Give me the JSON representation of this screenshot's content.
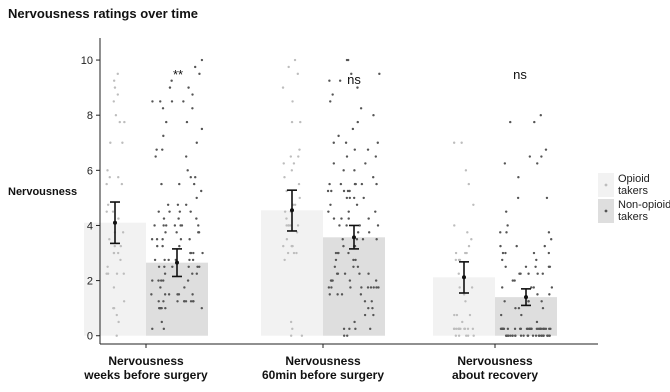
{
  "chart_data": {
    "type": "bar",
    "title": "Nervousness ratings over time",
    "ylabel": "Nervousness",
    "xlabel": "",
    "ylim": [
      -0.3,
      10.8
    ],
    "yticks": [
      0,
      2,
      4,
      6,
      8,
      10
    ],
    "categories": [
      [
        "Nervousness",
        "weeks before surgery"
      ],
      [
        "Nervousness",
        "60min before surgery"
      ],
      [
        "Nervousness",
        "about recovery"
      ]
    ],
    "series": [
      {
        "name": "Opioid takers",
        "values": [
          4.1,
          4.55,
          2.12
        ],
        "error_low": [
          3.35,
          3.8,
          1.55
        ],
        "error_high": [
          4.85,
          5.28,
          2.68
        ],
        "color": "#f2f2f2",
        "point_color": "#bdbdbd"
      },
      {
        "name": "Non-opioid takers",
        "values": [
          2.65,
          3.57,
          1.4
        ],
        "error_low": [
          2.15,
          3.15,
          1.1
        ],
        "error_high": [
          3.15,
          4.0,
          1.7
        ],
        "color": "#dedede",
        "point_color": "#555555"
      }
    ],
    "significance": [
      "**",
      "ns",
      "ns"
    ],
    "legend": {
      "position": "right",
      "labels": [
        [
          "Opioid",
          "takers"
        ],
        [
          "Non-opioid",
          "takers"
        ]
      ]
    },
    "grid": false
  }
}
